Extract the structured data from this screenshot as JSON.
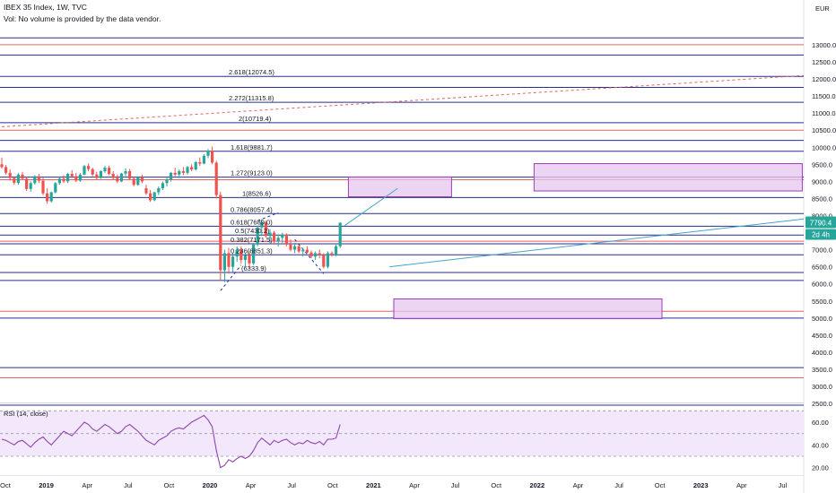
{
  "header": {
    "title": "IBEX 35 Index, 1W, TVC",
    "volume_note": "Vol: No volume is provided by the data vendor."
  },
  "currency": "EUR",
  "colors": {
    "price_badge": "#26a69a",
    "fib_line": "#2a2e8f",
    "red_line": "#e06464",
    "zone_fill": "#e5c7ef",
    "zone_border": "#9c3fb0",
    "trend": "#43a6c6",
    "rsi_line": "#8e44ad",
    "rsi_fill": "#f3e8fb"
  },
  "chart_data": {
    "type": "candlestick",
    "price_axis": {
      "ylim": [
        2450,
        14100
      ],
      "ticks": [
        13000,
        12500,
        12000,
        11500,
        11000,
        10500,
        10000,
        9500,
        9000,
        8500,
        8000,
        7500,
        7000,
        6500,
        6000,
        5500,
        5000,
        4500,
        4000,
        3500,
        3000,
        2500
      ],
      "tick_labels": [
        "13000.0",
        "12500.0",
        "12000.0",
        "11500.0",
        "11000.0",
        "10500.0",
        "10000.0",
        "9500.0",
        "9000.0",
        "8500.0",
        "8000.0",
        "7500.0",
        "7000.0",
        "6500.0",
        "6000.0",
        "5500.0",
        "5000.0",
        "4500.0",
        "4000.0",
        "3500.0",
        "3000.0",
        "2500.0"
      ]
    },
    "time_axis": {
      "labels": [
        "Oct",
        "2019",
        "Apr",
        "Jul",
        "Oct",
        "2020",
        "Apr",
        "Jul",
        "Oct",
        "2021",
        "Apr",
        "Jul",
        "Oct",
        "2022",
        "Apr",
        "Jul",
        "Oct",
        "2023",
        "Apr",
        "Jul"
      ],
      "bold": [
        "2019",
        "2020",
        "2021",
        "2022",
        "2023"
      ]
    },
    "current_price": {
      "value": 7790.4,
      "label": "7790.4",
      "countdown": "2d 4h"
    },
    "fib_levels": [
      {
        "ratio": "2.618",
        "value": 12074.5,
        "label": "2.618(12074.5)"
      },
      {
        "ratio": "2.272",
        "value": 11315.8,
        "label": "2.272(11315.8)"
      },
      {
        "ratio": "2",
        "value": 10719.4,
        "label": "2(10719.4)"
      },
      {
        "ratio": "1.618",
        "value": 9881.7,
        "label": "1.618(9881.7)"
      },
      {
        "ratio": "1.272",
        "value": 9123.0,
        "label": "1.272(9123.0)"
      },
      {
        "ratio": "1",
        "value": 8526.6,
        "label": "1(8526.6)"
      },
      {
        "ratio": "0.786",
        "value": 8057.4,
        "label": "0.786(8057.4)"
      },
      {
        "ratio": "0.618",
        "value": 7689.0,
        "label": "0.618(7689.0)"
      },
      {
        "ratio": "0.5",
        "value": 7430.2,
        "label": "0.5(7430.2)"
      },
      {
        "ratio": "0.382",
        "value": 7171.5,
        "label": "0.382(7171.5)"
      },
      {
        "ratio": "0.236",
        "value": 6851.3,
        "label": "0.236(6851.3)"
      },
      {
        "ratio": "0",
        "value": 6333.9,
        "label": "(6333.9)"
      }
    ],
    "navy_lines": [
      13200,
      12700,
      11750,
      10200,
      6100,
      5000,
      3550,
      2450
    ],
    "red_lines": [
      13000,
      10500,
      9050,
      7250,
      5200,
      3250
    ],
    "zones": [
      {
        "t0": 84,
        "t1": 109,
        "top": 9130,
        "bottom": 8550
      },
      {
        "t0": 129,
        "t1": 200,
        "top": 9520,
        "bottom": 8720
      },
      {
        "t0": 95,
        "t1": 160,
        "top": 5560,
        "bottom": 4980
      }
    ],
    "trendlines": [
      {
        "t0": 0,
        "v0": 10600,
        "t1": 200,
        "v1": 12100,
        "style": "dashed",
        "color": "red"
      },
      {
        "t0": 94,
        "v0": 6500,
        "t1": 200,
        "v1": 7900,
        "style": "solid",
        "color": "trend"
      },
      {
        "t0": 83,
        "v0": 7700,
        "t1": 96,
        "v1": 8800,
        "style": "solid",
        "color": "trend"
      },
      {
        "t0": 53,
        "v0": 5800,
        "t1": 58,
        "v1": 6550,
        "style": "dashed",
        "color": "navy"
      },
      {
        "t0": 71,
        "v0": 7300,
        "t1": 78,
        "v1": 6300,
        "style": "dashed",
        "color": "navy"
      },
      {
        "t0": 62,
        "v0": 7850,
        "t1": 67,
        "v1": 8080,
        "style": "dashed",
        "color": "navy"
      }
    ],
    "candles": [
      [
        9500,
        9700,
        9380,
        9420
      ],
      [
        9420,
        9480,
        9200,
        9250
      ],
      [
        9250,
        9350,
        9020,
        9100
      ],
      [
        9100,
        9150,
        8900,
        8960
      ],
      [
        8960,
        9250,
        8900,
        9200
      ],
      [
        9200,
        9280,
        9050,
        9080
      ],
      [
        9080,
        9120,
        8720,
        8780
      ],
      [
        8780,
        9000,
        8700,
        8950
      ],
      [
        8950,
        9180,
        8900,
        9150
      ],
      [
        9150,
        9220,
        8950,
        9020
      ],
      [
        9020,
        9100,
        8600,
        8650
      ],
      [
        8650,
        8800,
        8350,
        8420
      ],
      [
        8420,
        8700,
        8380,
        8680
      ],
      [
        8680,
        8980,
        8650,
        8950
      ],
      [
        8950,
        9120,
        8900,
        9080
      ],
      [
        9080,
        9180,
        8950,
        9000
      ],
      [
        9000,
        9250,
        8950,
        9220
      ],
      [
        9220,
        9330,
        9100,
        9150
      ],
      [
        9150,
        9250,
        8980,
        9020
      ],
      [
        9020,
        9240,
        8990,
        9200
      ],
      [
        9200,
        9480,
        9180,
        9450
      ],
      [
        9450,
        9520,
        9300,
        9360
      ],
      [
        9360,
        9400,
        9150,
        9200
      ],
      [
        9200,
        9280,
        9050,
        9100
      ],
      [
        9100,
        9320,
        9080,
        9300
      ],
      [
        9300,
        9450,
        9250,
        9400
      ],
      [
        9400,
        9460,
        9180,
        9220
      ],
      [
        9220,
        9300,
        9050,
        9100
      ],
      [
        9100,
        9200,
        8950,
        9000
      ],
      [
        9000,
        9250,
        8980,
        9230
      ],
      [
        9230,
        9380,
        9150,
        9300
      ],
      [
        9300,
        9360,
        9050,
        9080
      ],
      [
        9080,
        9120,
        8850,
        8900
      ],
      [
        8900,
        9150,
        8870,
        9120
      ],
      [
        9120,
        9200,
        8950,
        9000
      ],
      [
        8800,
        8900,
        8600,
        8650
      ],
      [
        8650,
        8750,
        8400,
        8450
      ],
      [
        8450,
        8700,
        8420,
        8680
      ],
      [
        8680,
        8850,
        8600,
        8800
      ],
      [
        8800,
        9000,
        8750,
        8950
      ],
      [
        8950,
        9100,
        8850,
        9050
      ],
      [
        9050,
        9280,
        9000,
        9250
      ],
      [
        9250,
        9400,
        9150,
        9200
      ],
      [
        9200,
        9350,
        9100,
        9300
      ],
      [
        9300,
        9420,
        9180,
        9250
      ],
      [
        9250,
        9450,
        9200,
        9420
      ],
      [
        9420,
        9500,
        9300,
        9350
      ],
      [
        9350,
        9600,
        9320,
        9560
      ],
      [
        9560,
        9700,
        9450,
        9520
      ],
      [
        9520,
        9800,
        9500,
        9750
      ],
      [
        9750,
        9950,
        9680,
        9900
      ],
      [
        9900,
        10020,
        9500,
        9550
      ],
      [
        9550,
        9600,
        8500,
        8600
      ],
      [
        8600,
        8700,
        6100,
        6400
      ],
      [
        6400,
        7000,
        6050,
        6900
      ],
      [
        6900,
        7050,
        6300,
        6500
      ],
      [
        6500,
        6900,
        6350,
        6800
      ],
      [
        6800,
        7100,
        6650,
        7000
      ],
      [
        7000,
        7100,
        6600,
        6700
      ],
      [
        6700,
        6900,
        6500,
        6850
      ],
      [
        6850,
        6950,
        6450,
        6600
      ],
      [
        6600,
        7200,
        6550,
        7150
      ],
      [
        7150,
        7700,
        7100,
        7650
      ],
      [
        7650,
        7900,
        7400,
        7800
      ],
      [
        7800,
        7850,
        7350,
        7400
      ],
      [
        7400,
        7600,
        7200,
        7500
      ],
      [
        7500,
        7550,
        7150,
        7250
      ],
      [
        7250,
        7450,
        7100,
        7350
      ],
      [
        7350,
        7500,
        7200,
        7450
      ],
      [
        7450,
        7480,
        7100,
        7150
      ],
      [
        7150,
        7300,
        6950,
        7000
      ],
      [
        7000,
        7200,
        6900,
        7100
      ],
      [
        7100,
        7150,
        6900,
        6950
      ],
      [
        6950,
        7050,
        6800,
        7000
      ],
      [
        7000,
        7100,
        6900,
        6920
      ],
      [
        6920,
        6980,
        6750,
        6800
      ],
      [
        6800,
        6950,
        6700,
        6900
      ],
      [
        6900,
        7000,
        6750,
        6850
      ],
      [
        6850,
        6900,
        6450,
        6500
      ],
      [
        6500,
        6950,
        6450,
        6900
      ],
      [
        6900,
        6950,
        6800,
        6850
      ],
      [
        6850,
        7150,
        6800,
        7100
      ],
      [
        7100,
        7800,
        7050,
        7790
      ]
    ],
    "rsi": {
      "label": "RSI (14, close)",
      "ylim": [
        15,
        75
      ],
      "ticks": [
        60,
        40,
        20
      ],
      "tick_labels": [
        "60.00",
        "40.00",
        "20.00"
      ],
      "band": [
        30,
        70
      ],
      "values": [
        45,
        44,
        42,
        40,
        43,
        44,
        41,
        38,
        42,
        45,
        47,
        43,
        40,
        44,
        48,
        52,
        50,
        48,
        52,
        56,
        60,
        58,
        54,
        52,
        55,
        58,
        56,
        53,
        50,
        52,
        56,
        58,
        55,
        52,
        48,
        44,
        42,
        40,
        44,
        46,
        48,
        52,
        54,
        55,
        54,
        57,
        60,
        62,
        64,
        66,
        62,
        56,
        35,
        20,
        22,
        27,
        25,
        28,
        30,
        28,
        30,
        35,
        42,
        46,
        43,
        40,
        44,
        42,
        44,
        45,
        42,
        40,
        42,
        41,
        44,
        42,
        41,
        43,
        40,
        45,
        45,
        46,
        58
      ]
    }
  }
}
